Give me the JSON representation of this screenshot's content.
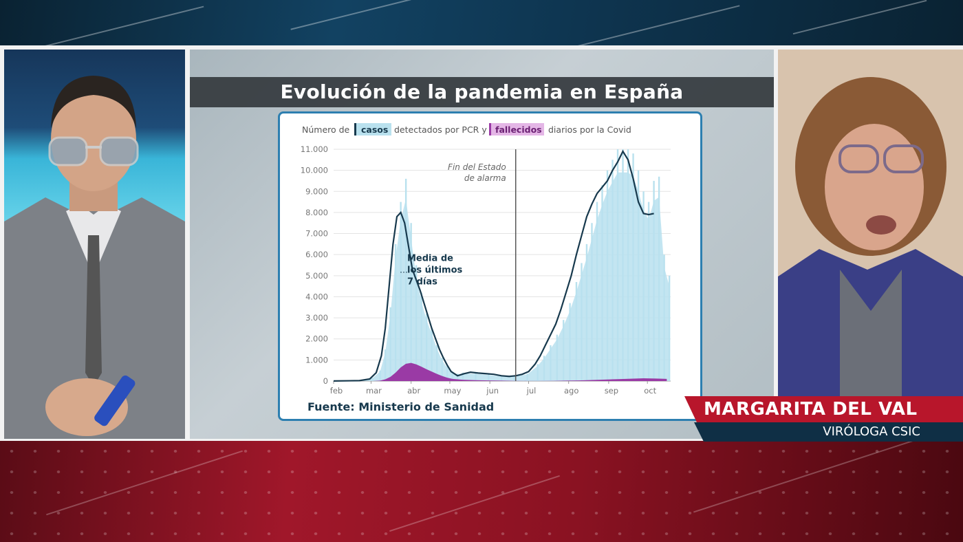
{
  "broadcast": {
    "left_panel_label": "",
    "right_panel_label": ""
  },
  "lower_third": {
    "name": "MARGARITA DEL VAL",
    "role": "VIRÓLOGA CSIC"
  },
  "colors": {
    "cases_fill": "#b9e1ee",
    "average_line": "#17394d",
    "deaths_fill": "#9a3aa5",
    "card_border": "#2d7fb0",
    "name_bar": "#b8162b",
    "role_bar": "#0f2f45"
  },
  "chart_data": {
    "type": "area",
    "title": "Evolución de la pandemia en España",
    "subtitle_parts": {
      "prefix": "Número de",
      "cases_label": "casos",
      "middle": "detectados por PCR y",
      "deaths_label": "fallecidos",
      "suffix": "diarios por la Covid"
    },
    "source": "Fuente: Ministerio de Sanidad",
    "ylim": [
      0,
      11000
    ],
    "y_ticks": [
      "0",
      "1.000",
      "2.000",
      "3.000",
      "4.000",
      "5.000",
      "6.000",
      "7.000",
      "8.000",
      "9.000",
      "10.000",
      "11.000"
    ],
    "y_tick_values": [
      0,
      1000,
      2000,
      3000,
      4000,
      5000,
      6000,
      7000,
      8000,
      9000,
      10000,
      11000
    ],
    "x_ticks": [
      "feb",
      "mar",
      "abr",
      "may",
      "jun",
      "jul",
      "ago",
      "sep",
      "oct"
    ],
    "x_tick_days": [
      0,
      29,
      60,
      90,
      121,
      151,
      182,
      213,
      243
    ],
    "xlim_days": [
      0,
      261
    ],
    "vline_day": 141,
    "vline_label_lines": [
      "Fin del Estado",
      "de alarma"
    ],
    "annotation_lines": [
      "Media de",
      "los últimos",
      "7 días"
    ],
    "grid": true,
    "series": [
      {
        "name": "casos",
        "kind": "bars",
        "x": [
          0,
          20,
          30,
          36,
          40,
          44,
          48,
          52,
          56,
          60,
          64,
          68,
          72,
          76,
          80,
          84,
          88,
          92,
          96,
          100,
          110,
          120,
          130,
          140,
          150,
          158,
          163,
          168,
          173,
          178,
          183,
          188,
          192,
          196,
          200,
          204,
          208,
          212,
          216,
          220,
          224,
          228,
          232,
          236,
          240,
          244,
          248,
          252,
          256,
          260
        ],
        "y": [
          5,
          20,
          150,
          500,
          1500,
          3500,
          6500,
          8500,
          9600,
          7500,
          5500,
          4200,
          3200,
          2500,
          1700,
          1100,
          700,
          450,
          350,
          400,
          380,
          320,
          250,
          250,
          350,
          800,
          1200,
          1700,
          2200,
          2900,
          3700,
          4700,
          5600,
          6500,
          7500,
          8500,
          9300,
          10000,
          10500,
          11000,
          11000,
          11000,
          10800,
          10000,
          9000,
          8500,
          9500,
          9700,
          6000,
          5000
        ]
      },
      {
        "name": "Media de los últimos 7 días",
        "kind": "line",
        "x": [
          0,
          20,
          28,
          33,
          37,
          40,
          43,
          46,
          49,
          52,
          55,
          58,
          61,
          64,
          67,
          70,
          73,
          76,
          79,
          82,
          85,
          88,
          91,
          96,
          101,
          106,
          112,
          118,
          124,
          130,
          136,
          141,
          146,
          151,
          156,
          160,
          164,
          168,
          172,
          176,
          180,
          184,
          188,
          192,
          196,
          200,
          204,
          208,
          212,
          216,
          220,
          224,
          228,
          232,
          236,
          240,
          244,
          248
        ],
        "y": [
          5,
          20,
          100,
          400,
          1200,
          2500,
          4500,
          6500,
          7800,
          8000,
          7500,
          6400,
          5300,
          4800,
          4300,
          3700,
          3100,
          2500,
          2000,
          1500,
          1100,
          750,
          450,
          250,
          350,
          420,
          380,
          350,
          320,
          250,
          220,
          250,
          320,
          450,
          800,
          1200,
          1700,
          2200,
          2700,
          3400,
          4200,
          5000,
          6000,
          6900,
          7800,
          8400,
          8900,
          9200,
          9500,
          10000,
          10400,
          10900,
          10500,
          9600,
          8500,
          7950,
          7900,
          7950
        ]
      },
      {
        "name": "fallecidos",
        "kind": "area",
        "x": [
          0,
          30,
          36,
          40,
          44,
          48,
          52,
          56,
          60,
          64,
          68,
          72,
          76,
          80,
          84,
          88,
          92,
          100,
          110,
          120,
          130,
          140,
          150,
          160,
          170,
          180,
          190,
          200,
          210,
          220,
          230,
          240,
          250,
          258
        ],
        "y": [
          0,
          0,
          20,
          80,
          200,
          400,
          650,
          820,
          860,
          790,
          680,
          560,
          450,
          340,
          240,
          160,
          100,
          60,
          40,
          30,
          20,
          10,
          5,
          5,
          10,
          20,
          30,
          50,
          70,
          90,
          110,
          130,
          120,
          100
        ]
      }
    ]
  }
}
